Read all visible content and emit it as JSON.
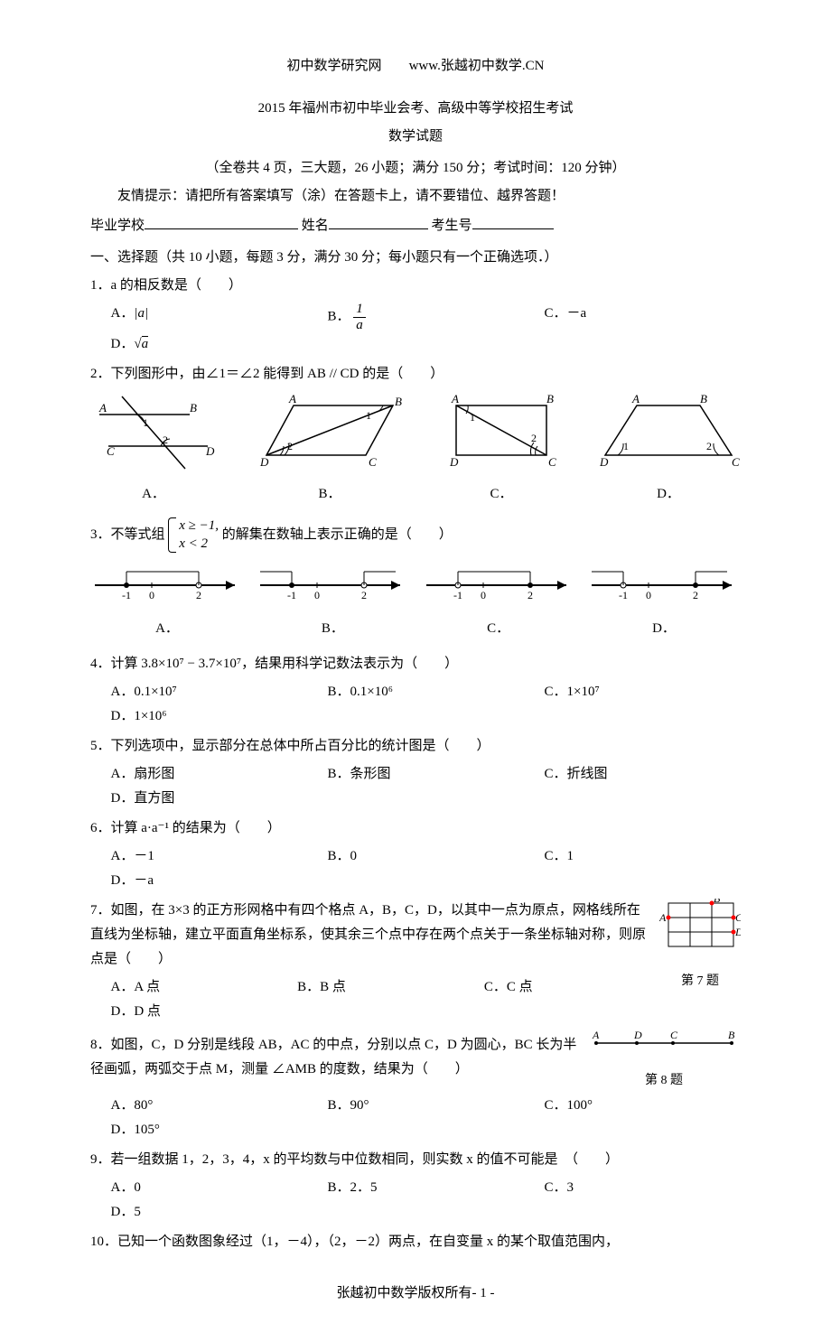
{
  "header": {
    "left": "初中数学研究网",
    "right": "www.张越初中数学.CN"
  },
  "title": "2015 年福州市初中毕业会考、高级中等学校招生考试",
  "subtitle": "数学试题",
  "info": "（全卷共 4 页，三大题，26 小题；满分 150 分；考试时间：120 分钟）",
  "hint": "友情提示：请把所有答案填写（涂）在答题卡上，请不要错位、越界答题！",
  "blanks": {
    "school": "毕业学校",
    "name": "姓名",
    "id": "考生号"
  },
  "section1": "一、选择题（共 10 小题，每题 3 分，满分 30 分；每小题只有一个正确选项．）",
  "q1": {
    "text": "1．a 的相反数是（　　）",
    "A": "A．|a|",
    "B_label": "B．",
    "B_num": "1",
    "B_den": "a",
    "C": "C．－a",
    "D": "D．√a"
  },
  "q2": {
    "text": "2．下列图形中，由∠1＝∠2 能得到 AB // CD 的是（　　）",
    "labels": {
      "A": "A．",
      "B": "B．",
      "C": "C．",
      "D": "D．"
    }
  },
  "q3": {
    "text_prefix": "3．不等式组",
    "line1": "x ≥ −1,",
    "line2": "x < 2",
    "text_suffix": "的解集在数轴上表示正确的是（　　）",
    "labels": {
      "A": "A．",
      "B": "B．",
      "C": "C．",
      "D": "D．"
    }
  },
  "q4": {
    "text": "4．计算 3.8×10⁷ − 3.7×10⁷，结果用科学记数法表示为（　　）",
    "A": "A．0.1×10⁷",
    "B": "B．0.1×10⁶",
    "C": "C．1×10⁷",
    "D": "D．1×10⁶"
  },
  "q5": {
    "text": "5．下列选项中，显示部分在总体中所占百分比的统计图是（　　）",
    "A": "A．扇形图",
    "B": "B．条形图",
    "C": "C．折线图",
    "D": "D．直方图"
  },
  "q6": {
    "text": "6．计算 a·a⁻¹ 的结果为（　　）",
    "A": "A．－1",
    "B": "B．0",
    "C": "C．1",
    "D": "D．－a"
  },
  "q7": {
    "text": "7．如图，在 3×3 的正方形网格中有四个格点 A，B，C，D，以其中一点为原点，网格线所在直线为坐标轴，建立平面直角坐标系，使其余三个点中存在两个点关于一条坐标轴对称，则原点是（　　）",
    "caption": "第 7 题",
    "A": "A．A 点",
    "B": "B．B 点",
    "C": "C．C 点",
    "D": "D．D 点"
  },
  "q8": {
    "text": "8．如图，C，D 分别是线段 AB，AC 的中点，分别以点 C，D 为圆心，BC 长为半径画弧，两弧交于点 M，测量 ∠AMB 的度数，结果为（　　）",
    "caption": "第 8 题",
    "A": "A．80°",
    "B": "B．90°",
    "C": "C．100°",
    "D": "D．105°"
  },
  "q9": {
    "text": "9．若一组数据 1，2，3，4，x 的平均数与中位数相同，则实数 x 的值不可能是　（　　）",
    "A": "A．0",
    "B": "B．2．5",
    "C": "C．3",
    "D": "D．5"
  },
  "q10": {
    "text": "10．已知一个函数图象经过（1，－4），（2，－2）两点，在自变量 x 的某个取值范围内，"
  },
  "footer": "张越初中数学版权所有- 1 -",
  "colors": {
    "text": "#000000",
    "bg": "#ffffff",
    "axis": "#000000",
    "red": "#ff0000"
  }
}
